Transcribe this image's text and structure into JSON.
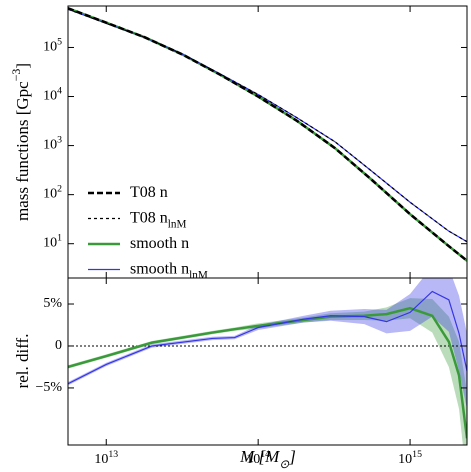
{
  "chart_data": [
    {
      "type": "line",
      "ylabel": "mass functions [Gpc^−3]",
      "log_x": true,
      "log_y": true,
      "xlim": [
        5600000000000.0,
        2370000000000000.0
      ],
      "ylim": [
        2,
        700000
      ],
      "yticks": [
        {
          "value": 10,
          "label": "10^1"
        },
        {
          "value": 100,
          "label": "10^2"
        },
        {
          "value": 1000,
          "label": "10^3"
        },
        {
          "value": 10000,
          "label": "10^4"
        },
        {
          "value": 100000,
          "label": "10^5"
        }
      ],
      "x": [
        5600000000000.0,
        10000000000000.0,
        18000000000000.0,
        32000000000000.0,
        56000000000000.0,
        100000000000000.0,
        180000000000000.0,
        320000000000000.0,
        560000000000000.0,
        1000000000000000.0,
        1800000000000000.0,
        2370000000000000.0
      ],
      "legend": "lower left",
      "series": [
        {
          "name": "T08 n",
          "color": "#000000",
          "dash": "6 3",
          "width": 2.5,
          "values": [
            630000,
            320000,
            160000,
            71000,
            28000,
            10000,
            3200,
            890,
            200,
            40,
            8.9,
            4.5
          ]
        },
        {
          "name": "T08 n_lnM",
          "color": "#000000",
          "dash": "3 3",
          "width": 1.2,
          "values": [
            600000,
            310000,
            160000,
            72000,
            29000,
            11000,
            3700,
            1200,
            300,
            70,
            18,
            11
          ]
        },
        {
          "name": "smooth n",
          "color": "#3a9a3a",
          "width": 2.5,
          "values": [
            630000,
            320000,
            160000,
            71000,
            28000,
            10000,
            3200,
            890,
            200,
            40,
            8.9,
            4.5
          ]
        },
        {
          "name": "smooth n_lnM",
          "color": "#3535e6",
          "width": 1.2,
          "values": [
            600000,
            310000,
            160000,
            72000,
            29000,
            11000,
            3700,
            1200,
            300,
            70,
            18,
            11
          ]
        }
      ]
    },
    {
      "type": "line",
      "ylabel": "rel. diff.",
      "xlabel": "M   [M_⊙]",
      "log_x": true,
      "xlim": [
        5600000000000.0,
        2370000000000000.0
      ],
      "ylim": [
        -11.8,
        8.1
      ],
      "xticks": [
        {
          "value": 10000000000000.0,
          "label": "10^13"
        },
        {
          "value": 100000000000000.0,
          "label": "10^14"
        },
        {
          "value": 1000000000000000.0,
          "label": "10^15"
        }
      ],
      "yticks": [
        {
          "value": -5,
          "label": "−5%"
        },
        0,
        {
          "value": 5,
          "label": "5%"
        }
      ],
      "x": [
        5600000000000.0,
        10000000000000.0,
        20000000000000.0,
        50000000000000.0,
        70000000000000.0,
        100000000000000.0,
        200000000000000.0,
        300000000000000.0,
        500000000000000.0,
        700000000000000.0,
        1000000000000000.0,
        1400000000000000.0,
        1800000000000000.0,
        2100000000000000.0,
        2370000000000000.0
      ],
      "series": [
        {
          "color": "#3a9a3a",
          "width": 2.5,
          "values": [
            -2.5,
            -1.2,
            0.4,
            1.6,
            2.0,
            2.4,
            3.1,
            3.5,
            3.6,
            3.8,
            4.5,
            3.6,
            0.5,
            -3.5,
            -11
          ],
          "errors": [
            0.2,
            0.2,
            0.2,
            0.2,
            0.2,
            0.3,
            0.3,
            0.4,
            0.5,
            0.8,
            1.2,
            2.0,
            3.0,
            4.0,
            5.5
          ]
        },
        {
          "color": "#3535e6",
          "width": 1.2,
          "values": [
            -4.5,
            -2.2,
            0,
            0.9,
            1.0,
            2.2,
            3.2,
            3.6,
            3.5,
            2.9,
            4.0,
            6.5,
            5.5,
            1.5,
            -3
          ],
          "errors": [
            0.2,
            0.2,
            0.2,
            0.2,
            0.2,
            0.3,
            0.4,
            0.6,
            0.9,
            1.4,
            2.2,
            3.0,
            3.8,
            4.5,
            4.5
          ]
        }
      ]
    }
  ]
}
